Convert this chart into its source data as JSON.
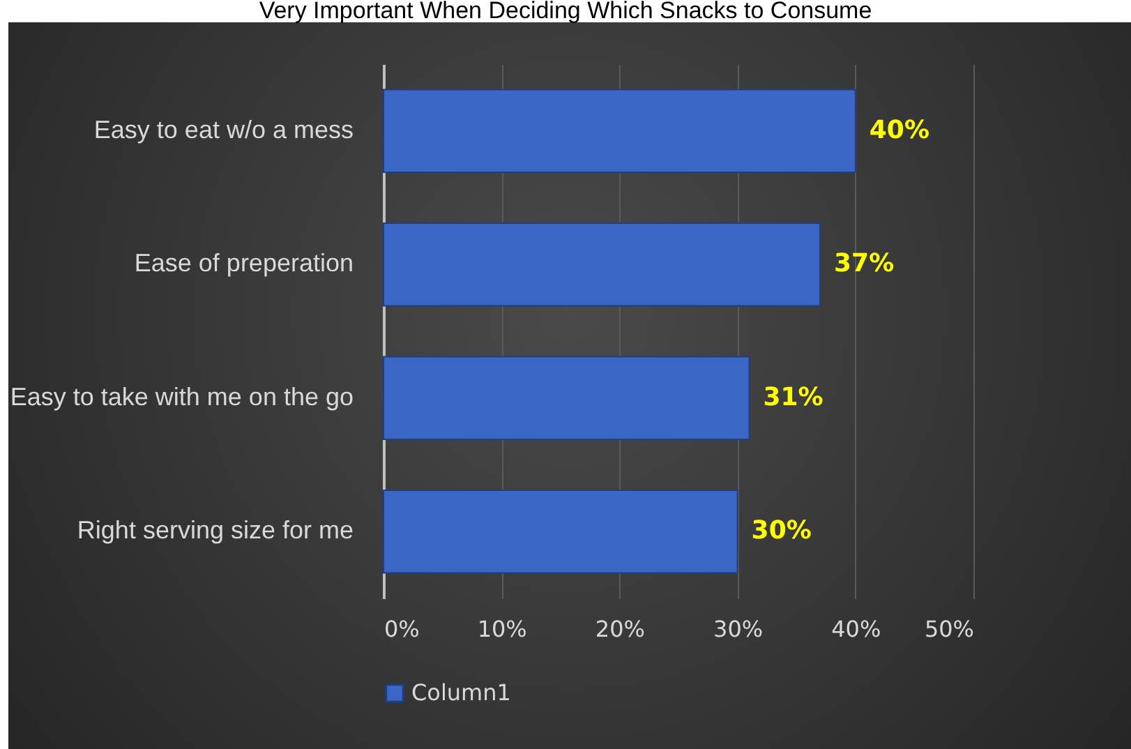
{
  "chart_data": {
    "type": "bar",
    "orientation": "horizontal",
    "title": "Very Important When Deciding Which Snacks to Consume",
    "categories": [
      "Easy to eat w/o a mess",
      "Ease of preperation",
      "Easy to take with me on the go",
      "Right serving size for me"
    ],
    "series": [
      {
        "name": "Column1",
        "color": "#3a66c6",
        "values": [
          40,
          37,
          31,
          30
        ],
        "value_labels": [
          "40%",
          "37%",
          "31%",
          "30%"
        ]
      }
    ],
    "xlim": [
      0,
      50
    ],
    "xticks": [
      {
        "value": 0,
        "label": "0%"
      },
      {
        "value": 10,
        "label": "10%"
      },
      {
        "value": 20,
        "label": "20%"
      },
      {
        "value": 30,
        "label": "30%"
      },
      {
        "value": 40,
        "label": "40%"
      },
      {
        "value": 50,
        "label": "50%"
      }
    ],
    "grid": "x",
    "legend": "bottom"
  }
}
